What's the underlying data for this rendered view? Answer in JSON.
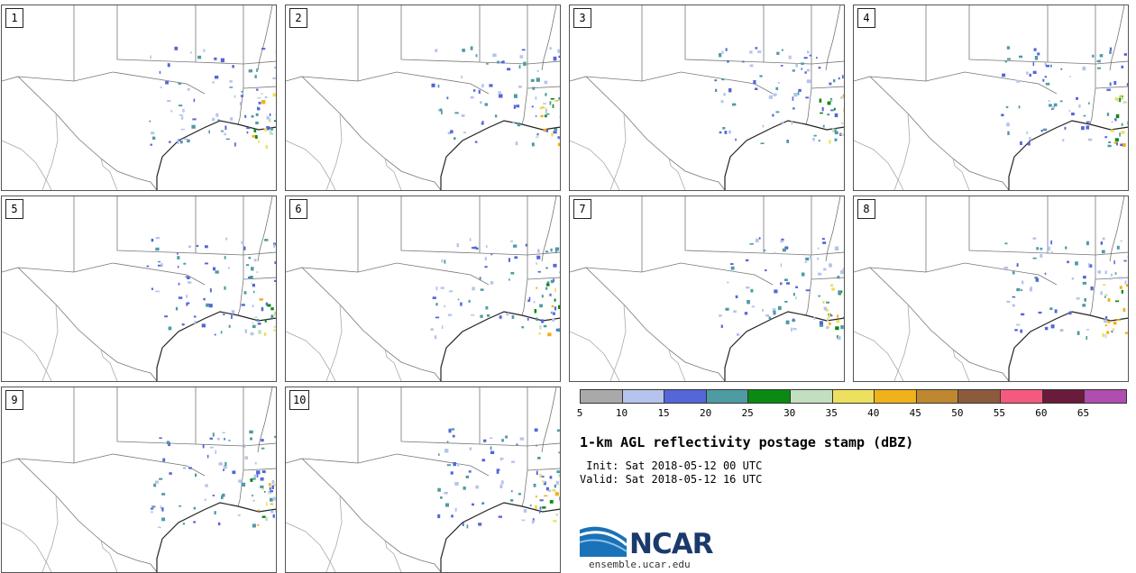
{
  "panels": [
    {
      "label": "1"
    },
    {
      "label": "2"
    },
    {
      "label": "3"
    },
    {
      "label": "4"
    },
    {
      "label": "5"
    },
    {
      "label": "6"
    },
    {
      "label": "7"
    },
    {
      "label": "8"
    },
    {
      "label": "9"
    },
    {
      "label": "10"
    }
  ],
  "colorbar": {
    "colors": [
      "#a9a9a9",
      "#b5c4ec",
      "#5566d8",
      "#4e9ba3",
      "#0a8a12",
      "#c2dfc0",
      "#ece05e",
      "#f0b21a",
      "#bf8730",
      "#8c5b3e",
      "#f45a7e",
      "#6a1a3a",
      "#b04db0"
    ],
    "ticks": [
      "5",
      "10",
      "15",
      "20",
      "25",
      "30",
      "35",
      "40",
      "45",
      "50",
      "55",
      "60",
      "65"
    ]
  },
  "title": "1-km AGL reflectivity postage stamp (dBZ)",
  "init_line": " Init: Sat 2018-05-12 00 UTC",
  "valid_line": "Valid: Sat 2018-05-12 16 UTC",
  "logo": {
    "text": "NCAR",
    "url": "ensemble.ucar.edu",
    "color": "#1b3a6b"
  }
}
